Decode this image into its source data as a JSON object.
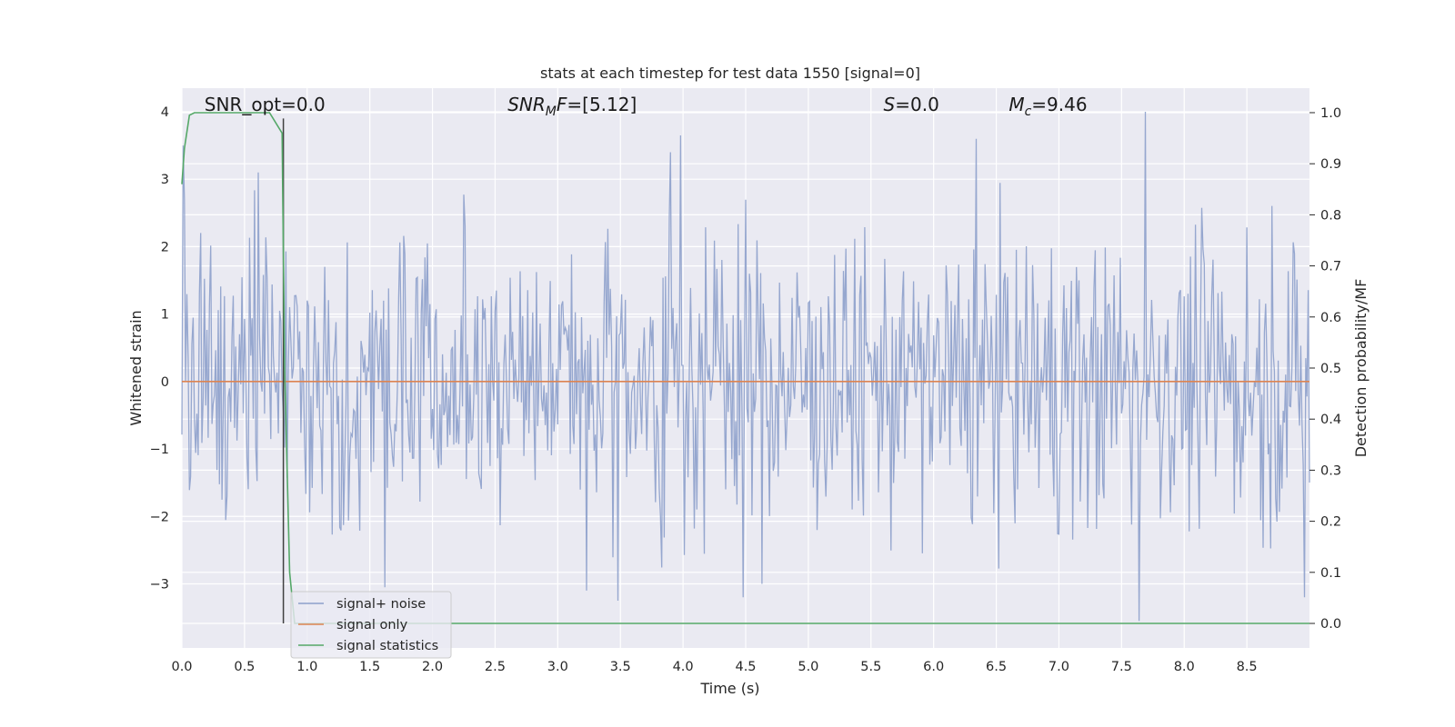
{
  "chart_data": {
    "type": "line",
    "title": "stats at each timestep for test data 1550 [signal=0]",
    "xlabel": "Time (s)",
    "ylabel": "Whitened strain",
    "y2label": "Detection probability/MF",
    "xlim": [
      0.0,
      9.0
    ],
    "ylim": [
      -3.95,
      4.35
    ],
    "y2lim": [
      -0.048,
      1.048
    ],
    "xticks": [
      0.0,
      0.5,
      1.0,
      1.5,
      2.0,
      2.5,
      3.0,
      3.5,
      4.0,
      4.5,
      5.0,
      5.5,
      6.0,
      6.5,
      7.0,
      7.5,
      8.0,
      8.5
    ],
    "xtick_labels": [
      "0.0",
      "0.5",
      "1.0",
      "1.5",
      "2.0",
      "2.5",
      "3.0",
      "3.5",
      "4.0",
      "4.5",
      "5.0",
      "5.5",
      "6.0",
      "6.5",
      "7.0",
      "7.5",
      "8.0",
      "8.5"
    ],
    "yticks": [
      4,
      3,
      2,
      1,
      0,
      -1,
      -2,
      -3
    ],
    "ytick_labels": [
      "4",
      "3",
      "2",
      "1",
      "0",
      "−1",
      "−2",
      "−3"
    ],
    "y2ticks": [
      1.0,
      0.9,
      0.8,
      0.7,
      0.6,
      0.5,
      0.4,
      0.3,
      0.2,
      0.1,
      0.0
    ],
    "y2tick_labels": [
      "1.0",
      "0.9",
      "0.8",
      "0.7",
      "0.6",
      "0.5",
      "0.4",
      "0.3",
      "0.2",
      "0.1",
      "0.0"
    ],
    "grid": true,
    "legend_placement": "lower-left",
    "annotations": [
      {
        "label": "SNR_opt=0.0",
        "x": 0.18
      },
      {
        "label": "SNR_MF=[5.12]",
        "x": 2.6
      },
      {
        "label": "S=0.0",
        "x": 5.6
      },
      {
        "label": "M_c=9.46",
        "x": 6.6
      }
    ],
    "vline_x": 0.81,
    "series": [
      {
        "name": "signal+ noise",
        "axis": "left",
        "color": "#8da0cb",
        "description": "whitened noise, roughly between -3.3 and 4.0",
        "sample_rate_hz": 100,
        "amplitude_envelope": [
          -2.5,
          2.5
        ],
        "extremes": [
          {
            "x": 0.01,
            "y": 3.5
          },
          {
            "x": 0.02,
            "y": 2.7
          },
          {
            "x": 3.98,
            "y": 3.65
          },
          {
            "x": 3.9,
            "y": 3.4
          },
          {
            "x": 6.34,
            "y": 3.6
          },
          {
            "x": 7.69,
            "y": 4.0
          },
          {
            "x": 7.64,
            "y": -3.55
          },
          {
            "x": 3.48,
            "y": -3.25
          },
          {
            "x": 4.48,
            "y": -3.2
          },
          {
            "x": 3.23,
            "y": -3.1
          },
          {
            "x": 1.62,
            "y": -3.05
          },
          {
            "x": 8.96,
            "y": -3.2
          }
        ]
      },
      {
        "name": "signal only",
        "axis": "left",
        "color": "#dd8452",
        "x": [
          0.0,
          9.0
        ],
        "y": [
          0.0,
          0.0
        ]
      },
      {
        "name": "signal statistics",
        "axis": "right",
        "color": "#55a868",
        "x": [
          0.0,
          0.02,
          0.06,
          0.1,
          0.2,
          0.4,
          0.6,
          0.7,
          0.8,
          0.82,
          0.86,
          0.9,
          1.0,
          2.0,
          4.0,
          6.0,
          8.0,
          9.0
        ],
        "y": [
          0.86,
          0.93,
          0.995,
          1.0,
          1.0,
          1.0,
          1.0,
          1.0,
          0.96,
          0.5,
          0.1,
          0.0,
          0.0,
          0.0,
          0.0,
          0.0,
          0.0,
          0.0
        ]
      }
    ]
  },
  "colors": {
    "plot_background": "#eaeaf2",
    "grid": "#ffffff",
    "vline": "#404040"
  }
}
